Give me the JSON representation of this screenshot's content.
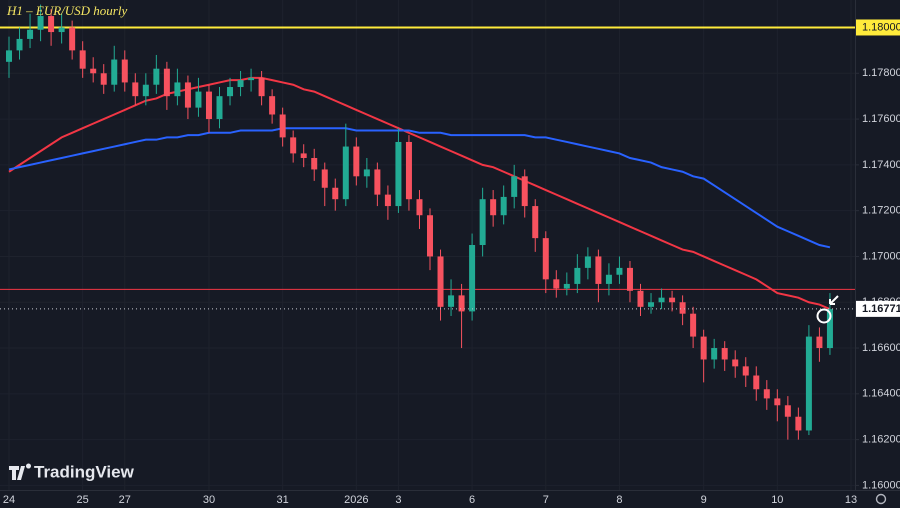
{
  "chart_data": {
    "type": "candlestick",
    "title": "H1 – EUR/USD hourly",
    "watermark": "TradingView",
    "categories": [
      "24",
      null,
      null,
      null,
      null,
      null,
      null,
      "25",
      null,
      null,
      null,
      "27",
      null,
      null,
      null,
      null,
      null,
      null,
      null,
      "30",
      null,
      null,
      null,
      null,
      null,
      null,
      "31",
      null,
      null,
      null,
      null,
      null,
      null,
      "2026",
      null,
      null,
      null,
      "3",
      null,
      null,
      null,
      null,
      null,
      null,
      "6",
      null,
      null,
      null,
      null,
      null,
      null,
      "7",
      null,
      null,
      null,
      null,
      null,
      null,
      "8",
      null,
      null,
      null,
      null,
      null,
      null,
      null,
      "9",
      null,
      null,
      null,
      null,
      null,
      null,
      "10",
      null,
      null,
      null,
      null,
      null,
      null,
      "13"
    ],
    "open": [
      1.1785,
      1.179,
      1.1795,
      1.1799,
      1.1805,
      1.1798,
      1.18,
      1.179,
      1.1782,
      1.178,
      1.1775,
      1.1786,
      1.1776,
      1.177,
      1.1775,
      1.1782,
      1.177,
      1.1776,
      1.1765,
      1.1772,
      1.176,
      1.177,
      1.1774,
      1.1777,
      1.1778,
      1.177,
      1.1762,
      1.1752,
      1.1745,
      1.1743,
      1.1738,
      1.173,
      1.1725,
      1.1748,
      1.1735,
      1.1738,
      1.1727,
      1.1722,
      1.175,
      1.1725,
      1.1718,
      1.17,
      1.1678,
      1.1683,
      1.1676,
      1.1705,
      1.1725,
      1.1718,
      1.1726,
      1.1735,
      1.1722,
      1.1708,
      1.169,
      1.1686,
      1.1688,
      1.1695,
      1.17,
      1.1688,
      1.1692,
      1.1695,
      1.1685,
      1.1678,
      1.168,
      1.1682,
      1.168,
      1.1675,
      1.1665,
      1.1655,
      1.166,
      1.1655,
      1.1652,
      1.1648,
      1.1642,
      1.1638,
      1.1635,
      1.163,
      1.1624,
      1.1665,
      1.166,
      null,
      null
    ],
    "high": [
      1.1796,
      1.18,
      1.1806,
      1.181,
      1.1808,
      1.1806,
      1.1803,
      1.1794,
      1.1787,
      1.1784,
      1.1792,
      1.179,
      1.178,
      1.178,
      1.1788,
      1.1785,
      1.1782,
      1.1779,
      1.1778,
      1.1775,
      1.1774,
      1.1778,
      1.1781,
      1.1782,
      1.1781,
      1.1773,
      1.1765,
      1.1755,
      1.1749,
      1.1747,
      1.1741,
      1.1734,
      1.1758,
      1.1752,
      1.1743,
      1.1741,
      1.1731,
      1.1756,
      1.1753,
      1.1729,
      1.1721,
      1.1703,
      1.169,
      1.1688,
      1.171,
      1.173,
      1.1729,
      1.1731,
      1.174,
      1.1738,
      1.1725,
      1.1711,
      1.1694,
      1.1693,
      1.1701,
      1.1704,
      1.1703,
      1.1697,
      1.17,
      1.1698,
      1.1688,
      1.1684,
      1.1686,
      1.1685,
      1.1683,
      1.1678,
      1.1668,
      1.1664,
      1.1663,
      1.1659,
      1.1656,
      1.1652,
      1.1646,
      1.1642,
      1.1639,
      1.1634,
      1.167,
      1.1669,
      1.1684,
      null,
      null
    ],
    "low": [
      1.1778,
      1.1786,
      1.1791,
      1.1794,
      1.1792,
      1.1793,
      1.1786,
      1.1778,
      1.1776,
      1.1771,
      1.1772,
      1.1772,
      1.1766,
      1.1766,
      1.1771,
      1.1764,
      1.1766,
      1.176,
      1.1761,
      1.1754,
      1.1756,
      1.1766,
      1.177,
      1.1772,
      1.1766,
      1.1758,
      1.1748,
      1.1741,
      1.1739,
      1.1733,
      1.1722,
      1.172,
      1.1722,
      1.1731,
      1.173,
      1.1722,
      1.1716,
      1.1719,
      1.172,
      1.1712,
      1.1694,
      1.1672,
      1.1674,
      1.166,
      1.1672,
      1.17,
      1.1713,
      1.1714,
      1.1721,
      1.1717,
      1.1702,
      1.1684,
      1.1682,
      1.1683,
      1.1684,
      1.169,
      1.168,
      1.1683,
      1.1688,
      1.168,
      1.1674,
      1.1675,
      1.1677,
      1.1676,
      1.167,
      1.166,
      1.1645,
      1.1651,
      1.165,
      1.1647,
      1.1643,
      1.1637,
      1.1633,
      1.1628,
      1.162,
      1.162,
      1.1622,
      1.1654,
      1.1657,
      null,
      null
    ],
    "close": [
      1.179,
      1.1795,
      1.1799,
      1.1805,
      1.1798,
      1.18,
      1.179,
      1.1782,
      1.178,
      1.1775,
      1.1786,
      1.1776,
      1.177,
      1.1775,
      1.1782,
      1.177,
      1.1776,
      1.1765,
      1.1772,
      1.176,
      1.177,
      1.1774,
      1.1777,
      1.1778,
      1.177,
      1.1762,
      1.1752,
      1.1745,
      1.1743,
      1.1738,
      1.173,
      1.1725,
      1.1748,
      1.1735,
      1.1738,
      1.1727,
      1.1722,
      1.175,
      1.1725,
      1.1718,
      1.17,
      1.1678,
      1.1683,
      1.1676,
      1.1705,
      1.1725,
      1.1718,
      1.1726,
      1.1735,
      1.1722,
      1.1708,
      1.169,
      1.1686,
      1.1688,
      1.1695,
      1.17,
      1.1688,
      1.1692,
      1.1695,
      1.1685,
      1.1678,
      1.168,
      1.1682,
      1.168,
      1.1675,
      1.1665,
      1.1655,
      1.166,
      1.1655,
      1.1652,
      1.1648,
      1.1642,
      1.1638,
      1.1635,
      1.163,
      1.1624,
      1.1665,
      1.166,
      1.1677,
      null,
      null
    ],
    "up_color": "#22ab94",
    "down_color": "#f7525f",
    "lines": [
      {
        "color": "#f23645",
        "values": [
          1.1737,
          1.174,
          1.1743,
          1.1746,
          1.1749,
          1.1752,
          1.1754,
          1.1756,
          1.1758,
          1.176,
          1.1762,
          1.1764,
          1.1766,
          1.1768,
          1.1769,
          1.1771,
          1.1772,
          1.1773,
          1.1774,
          1.1775,
          1.1776,
          1.1777,
          1.1777,
          1.1778,
          1.1778,
          1.1777,
          1.1776,
          1.1775,
          1.1773,
          1.1772,
          1.177,
          1.1768,
          1.1766,
          1.1764,
          1.1762,
          1.176,
          1.1758,
          1.1756,
          1.1754,
          1.1752,
          1.175,
          1.1748,
          1.1746,
          1.1744,
          1.1742,
          1.174,
          1.1739,
          1.1737,
          1.1735,
          1.1733,
          1.1731,
          1.1729,
          1.1727,
          1.1725,
          1.1723,
          1.1721,
          1.1719,
          1.1717,
          1.1715,
          1.1713,
          1.1711,
          1.1709,
          1.1707,
          1.1705,
          1.1703,
          1.1702,
          1.17,
          1.1698,
          1.1696,
          1.1694,
          1.1692,
          1.169,
          1.1687,
          1.1684,
          1.1683,
          1.1682,
          1.168,
          1.1679,
          1.1677,
          null,
          null
        ]
      },
      {
        "color": "#2962ff",
        "values": [
          1.1738,
          1.1739,
          1.174,
          1.1741,
          1.1742,
          1.1743,
          1.1744,
          1.1745,
          1.1746,
          1.1747,
          1.1748,
          1.1749,
          1.175,
          1.1751,
          1.1751,
          1.1752,
          1.1752,
          1.1753,
          1.1753,
          1.1754,
          1.1754,
          1.1754,
          1.1755,
          1.1755,
          1.1755,
          1.1755,
          1.1756,
          1.1756,
          1.1756,
          1.1756,
          1.1756,
          1.1756,
          1.1756,
          1.1755,
          1.1755,
          1.1755,
          1.1755,
          1.1755,
          1.1755,
          1.1754,
          1.1754,
          1.1754,
          1.1753,
          1.1753,
          1.1753,
          1.1753,
          1.1753,
          1.1753,
          1.1753,
          1.1753,
          1.1752,
          1.1752,
          1.1751,
          1.175,
          1.1749,
          1.1748,
          1.1747,
          1.1746,
          1.1745,
          1.1743,
          1.1742,
          1.1741,
          1.1739,
          1.1738,
          1.1737,
          1.1735,
          1.1734,
          1.1731,
          1.1728,
          1.1725,
          1.1722,
          1.1719,
          1.1716,
          1.1713,
          1.1711,
          1.1709,
          1.1707,
          1.1705,
          1.1704,
          null,
          null
        ]
      }
    ],
    "hlines": [
      {
        "value": 1.18,
        "label": "1.18000",
        "color": "#ffeb3b"
      },
      {
        "value": 1.16856,
        "color": "#f23645"
      }
    ],
    "last_price": 1.16771,
    "ylim": [
      1.1598,
      1.1812
    ],
    "yticks": [
      {
        "value": 1.178,
        "label": "1.17800"
      },
      {
        "value": 1.176,
        "label": "1.17600"
      },
      {
        "value": 1.174,
        "label": "1.17400"
      },
      {
        "value": 1.172,
        "label": "1.17200"
      },
      {
        "value": 1.17,
        "label": "1.17000"
      },
      {
        "value": 1.168,
        "label": "1.16800"
      },
      {
        "value": 1.166,
        "label": "1.16600"
      },
      {
        "value": 1.164,
        "label": "1.16400"
      },
      {
        "value": 1.162,
        "label": "1.16200"
      },
      {
        "value": 1.16,
        "label": "1.16000"
      }
    ],
    "grid": true
  }
}
